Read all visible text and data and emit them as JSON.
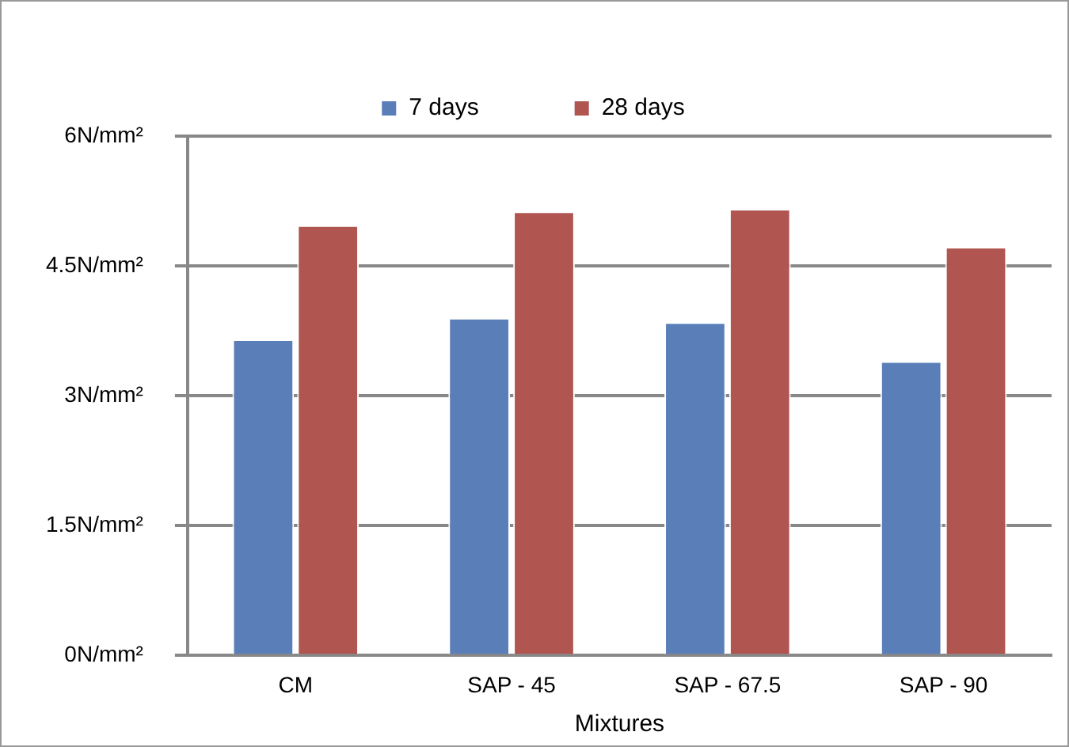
{
  "chart_data": {
    "type": "bar",
    "xlabel": "Mixtures",
    "categories": [
      "CM",
      "SAP - 45",
      "SAP - 67.5",
      "SAP - 90"
    ],
    "series": [
      {
        "name": "7 days",
        "color": "#5a7fb8",
        "values": [
          3.65,
          3.9,
          3.85,
          3.4
        ]
      },
      {
        "name": "28 days",
        "color": "#b05550",
        "values": [
          4.97,
          5.13,
          5.16,
          4.72
        ]
      }
    ],
    "ylim": [
      0,
      6
    ],
    "yticks": [
      {
        "value": 0,
        "label": "0N/mm²"
      },
      {
        "value": 1.5,
        "label": "1.5N/mm²"
      },
      {
        "value": 3,
        "label": "3N/mm²"
      },
      {
        "value": 4.5,
        "label": "4.5N/mm²"
      },
      {
        "value": 6,
        "label": "6N/mm²"
      }
    ],
    "grid": "y",
    "legend": "top"
  }
}
